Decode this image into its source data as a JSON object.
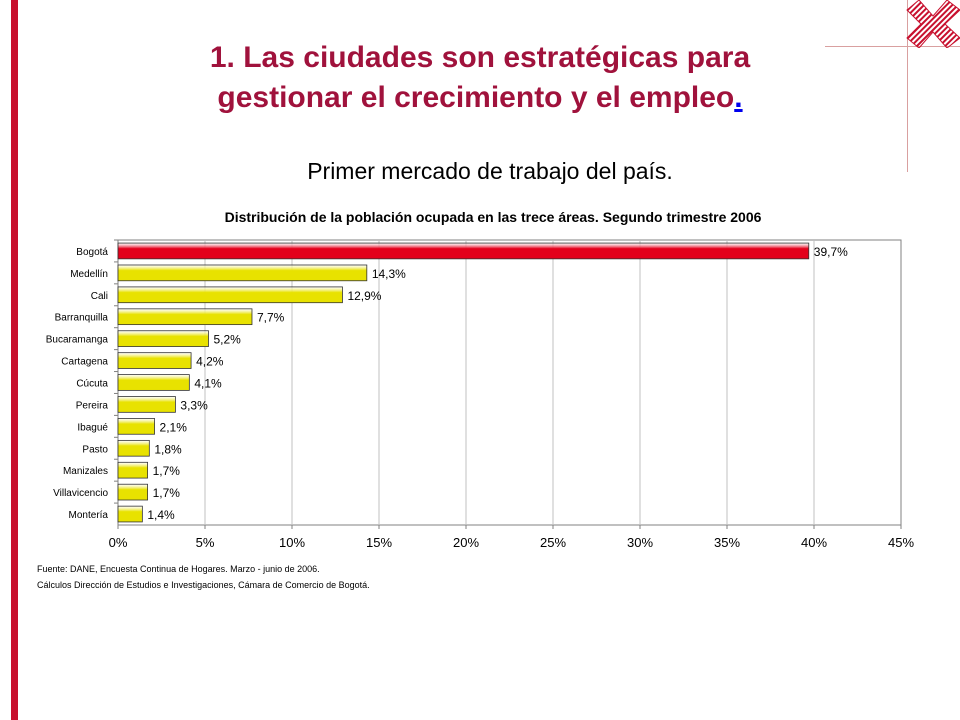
{
  "page": {
    "title_line1": "1. Las ciudades son estratégicas para",
    "title_line2": "gestionar el crecimiento y el empleo",
    "title_dot": ".",
    "subtitle": "Primer mercado de trabajo del país.",
    "colors": {
      "accent": "#c8102e",
      "title": "#a0123c",
      "bar_highlight": "#e3001b",
      "bar_default": "#e8e200"
    }
  },
  "chart_data": {
    "type": "bar",
    "orientation": "horizontal",
    "title": "Distribución de la población ocupada en las trece áreas. Segundo trimestre 2006",
    "categories": [
      "Bogotá",
      "Medellín",
      "Cali",
      "Barranquilla",
      "Bucaramanga",
      "Cartagena",
      "Cúcuta",
      "Pereira",
      "Ibagué",
      "Pasto",
      "Manizales",
      "Villavicencio",
      "Montería"
    ],
    "values": [
      39.7,
      14.3,
      12.9,
      7.7,
      5.2,
      4.2,
      4.1,
      3.3,
      2.1,
      1.8,
      1.7,
      1.7,
      1.4
    ],
    "data_labels": [
      "39,7%",
      "14,3%",
      "12,9%",
      "7,7%",
      "5,2%",
      "4,2%",
      "4,1%",
      "3,3%",
      "2,1%",
      "1,8%",
      "1,7%",
      "1,7%",
      "1,4%"
    ],
    "xlim": [
      0,
      45
    ],
    "xticks": [
      "0%",
      "5%",
      "10%",
      "15%",
      "20%",
      "25%",
      "30%",
      "35%",
      "40%",
      "45%"
    ],
    "grid": true,
    "highlight_index": 0,
    "source_notes": [
      "Fuente: DANE, Encuesta Continua de Hogares. Marzo - junio de 2006.",
      "Cálculos Dirección de Estudios e Investigaciones, Cámara de Comercio de Bogotá."
    ]
  }
}
